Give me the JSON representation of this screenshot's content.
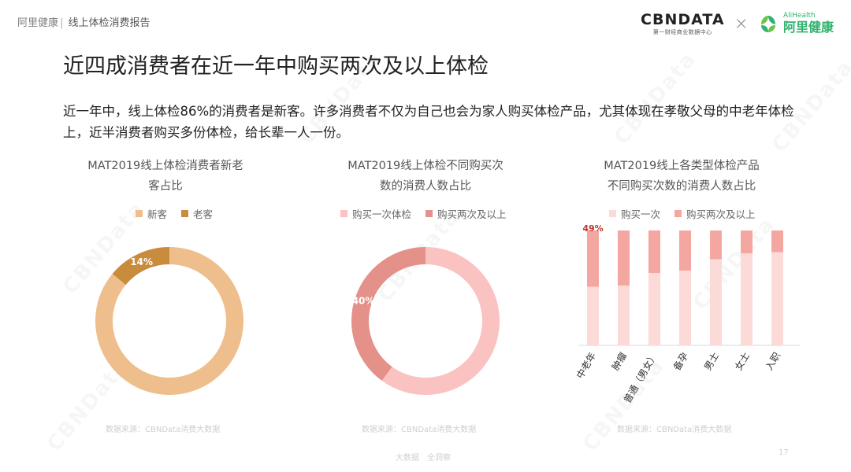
{
  "header": {
    "brand": "阿里健康",
    "report_name": "线上体检消费报告",
    "logo_cbn": "CBNDATA",
    "logo_cbn_tagline": "第一财经商业数据中心",
    "logo_times": "×",
    "logo_ali_en": "AliHealth",
    "logo_ali_cn": "阿里健康"
  },
  "page": {
    "title": "近四成消费者在近一年中购买两次及以上体检",
    "description": "近一年中，线上体检86%的消费者是新客。许多消费者不仅为自己也会为家人购买体检产品，尤其体现在孝敬父母的中老年体检上，近半消费者购买多份体检，给长辈一人一份。",
    "footer_text": "大数据　全洞察",
    "page_number": "17"
  },
  "watermark": "CBNData",
  "chart_data": [
    {
      "type": "pie",
      "title_line1": "MAT2019线上体检消费者新老",
      "title_line2": "客占比",
      "categories": [
        "新客",
        "老客"
      ],
      "values": [
        86,
        14
      ],
      "data_labels": [
        "",
        "14%"
      ],
      "colors": [
        "#eebf8c",
        "#c88c3c"
      ],
      "source": "数据来源：CBNData消费大数据"
    },
    {
      "type": "pie",
      "title_line1": "MAT2019线上体检不同购买次",
      "title_line2": "数的消费人数占比",
      "categories": [
        "购买一次体检",
        "购买两次及以上"
      ],
      "values": [
        60,
        40
      ],
      "data_labels": [
        "",
        "40%"
      ],
      "colors": [
        "#fbc2c2",
        "#e39189"
      ],
      "source": "数据来源：CBNData消费大数据"
    },
    {
      "type": "bar",
      "stacked": true,
      "title_line1": "MAT2019线上各类型体检产品",
      "title_line2": "不同购买次数的消费人数占比",
      "categories": [
        "中老年",
        "肿瘤",
        "普通（男女）",
        "备孕",
        "男士",
        "女士",
        "入职"
      ],
      "series": [
        {
          "name": "购买一次",
          "values": [
            51,
            52,
            63,
            65,
            75,
            80,
            81
          ],
          "color": "#fcdad8"
        },
        {
          "name": "购买两次及以上",
          "values": [
            49,
            48,
            37,
            35,
            25,
            20,
            19
          ],
          "color": "#f4a7a0"
        }
      ],
      "annotation": "49%",
      "annotation_color": "#c0342d",
      "ylim": [
        0,
        100
      ],
      "source": "数据来源：CBNData消费大数据"
    }
  ]
}
